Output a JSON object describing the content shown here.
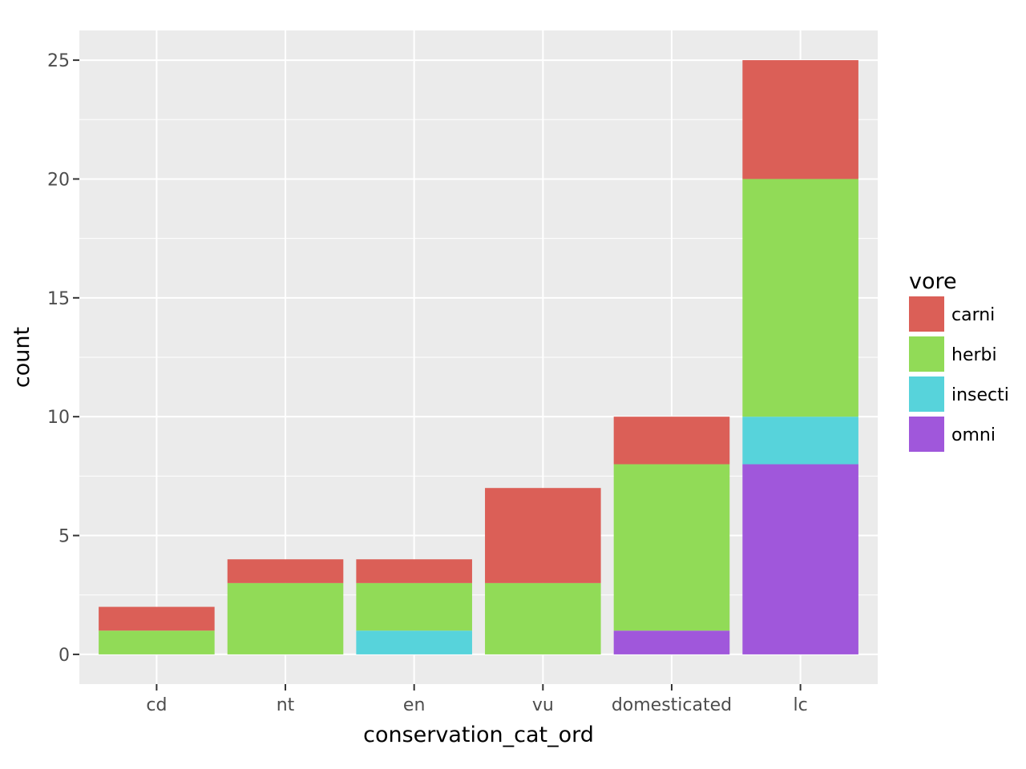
{
  "chart_data": {
    "type": "bar",
    "stacked": true,
    "categories": [
      "cd",
      "nt",
      "en",
      "vu",
      "domesticated",
      "lc"
    ],
    "series": [
      {
        "name": "carni",
        "color": "#db5f57",
        "values": [
          1,
          1,
          1,
          4,
          2,
          5
        ]
      },
      {
        "name": "herbi",
        "color": "#91db57",
        "values": [
          1,
          3,
          2,
          3,
          7,
          10
        ]
      },
      {
        "name": "insecti",
        "color": "#57d3db",
        "values": [
          0,
          0,
          1,
          0,
          0,
          2
        ]
      },
      {
        "name": "omni",
        "color": "#a057db",
        "values": [
          0,
          0,
          0,
          0,
          1,
          8
        ]
      }
    ],
    "stack_order_bottom_to_top": [
      "omni",
      "insecti",
      "herbi",
      "carni"
    ],
    "xlabel": "conservation_cat_ord",
    "ylabel": "count",
    "ylim": [
      -1.25,
      26.25
    ],
    "yticks": [
      0,
      5,
      10,
      15,
      20,
      25
    ],
    "grid": true,
    "panel_background": "#ebebeb",
    "legend": {
      "title": "vore",
      "position": "right"
    }
  }
}
